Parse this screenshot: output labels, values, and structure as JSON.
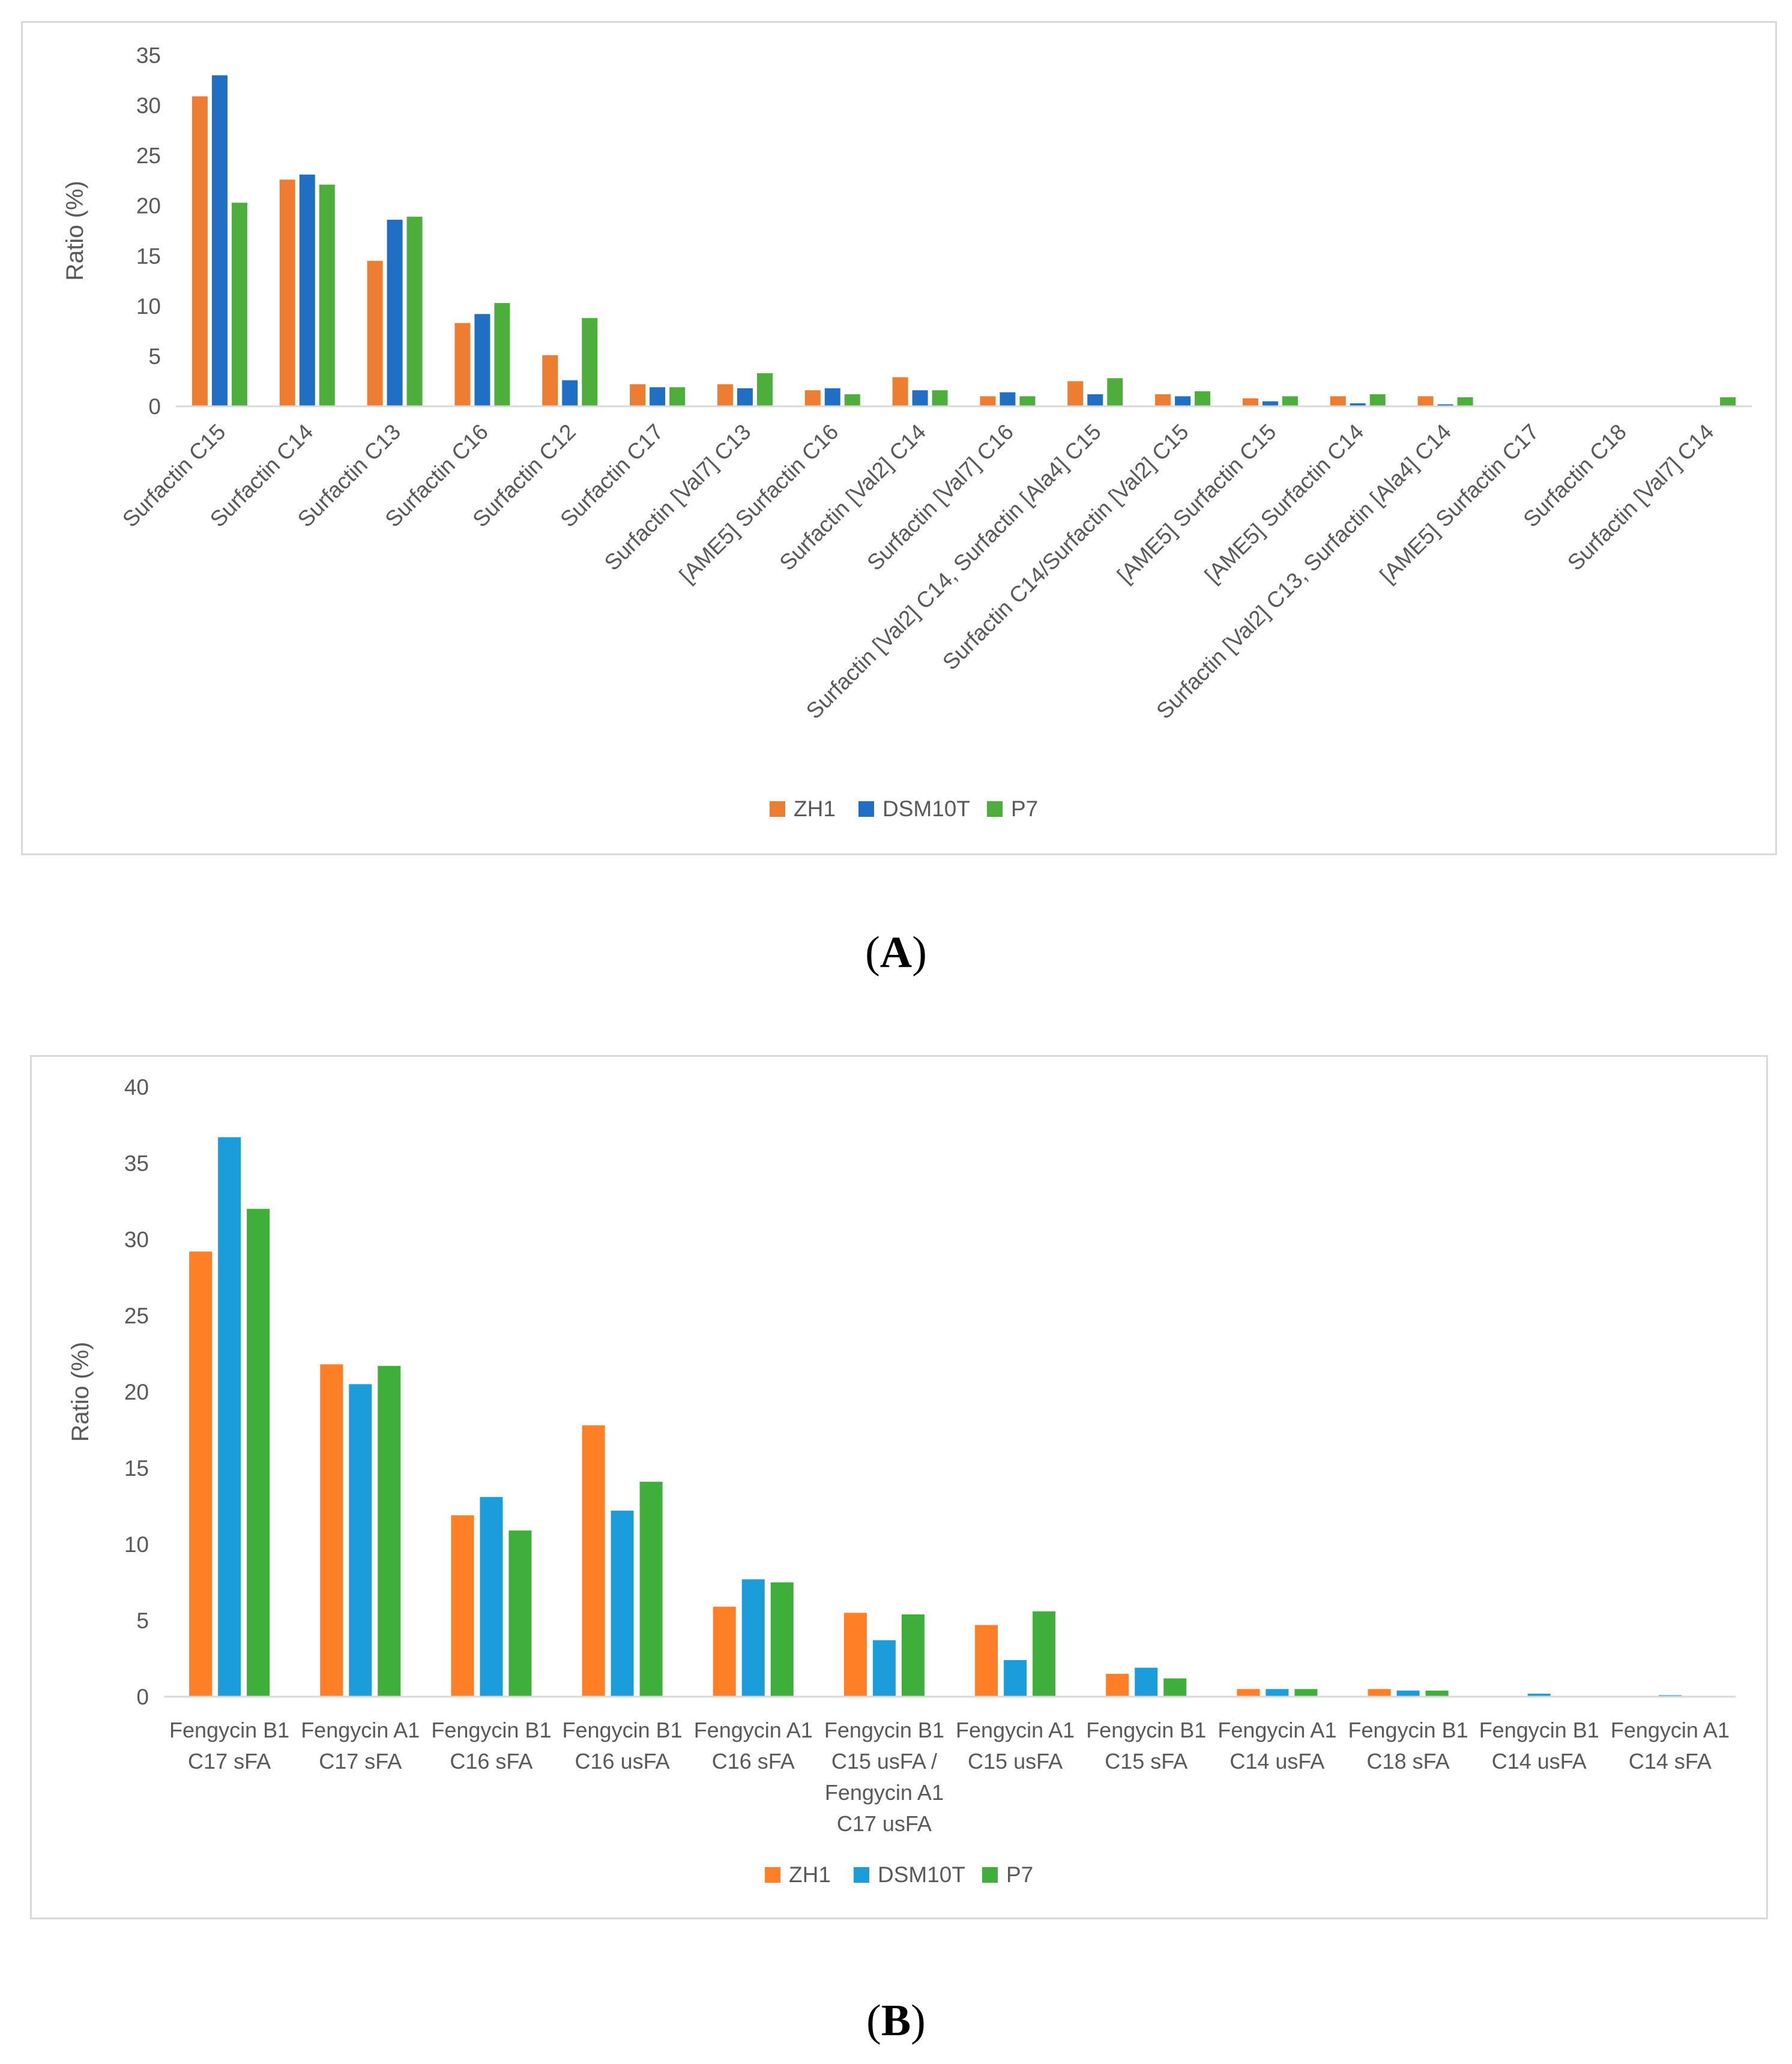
{
  "chart_data": [
    {
      "type": "bar",
      "panel": "A",
      "title": "",
      "xlabel": "",
      "ylabel": "Ratio (%)",
      "ylim": [
        0,
        35
      ],
      "yticks": [
        0,
        5,
        10,
        15,
        20,
        25,
        30,
        35
      ],
      "grid": false,
      "legend_position": "bottom",
      "categories": [
        "Surfactin C15",
        "Surfactin C14",
        "Surfactin C13",
        "Surfactin C16",
        "Surfactin C12",
        "Surfactin C17",
        "Surfactin [Val7] C13",
        "[AME5] Surfactin C16",
        "Surfactin [Val2] C14",
        "Surfactin [Val7] C16",
        "Surfactin [Val2] C14, Surfactin [Ala4] C15",
        "Surfactin C14/Surfactin [Val2] C15",
        "[AME5] Surfactin C15",
        "[AME5] Surfactin C14",
        "Surfactin [Val2] C13, Surfactin [Ala4] C14",
        "[AME5] Surfactin C17",
        "Surfactin C18",
        "Surfactin [Val7] C14"
      ],
      "series": [
        {
          "name": "ZH1",
          "color": "#ED7D31",
          "values": [
            30.9,
            22.6,
            14.5,
            8.3,
            5.1,
            2.2,
            2.2,
            1.6,
            2.9,
            1.0,
            2.5,
            1.2,
            0.8,
            1.0,
            1.0,
            0,
            0,
            0
          ]
        },
        {
          "name": "DSM10T",
          "color": "#1F6FC5",
          "values": [
            33.0,
            23.1,
            18.6,
            9.2,
            2.6,
            1.9,
            1.8,
            1.8,
            1.6,
            1.4,
            1.2,
            1.0,
            0.5,
            0.3,
            0.2,
            0,
            0,
            0
          ]
        },
        {
          "name": "P7",
          "color": "#4EAE3C",
          "values": [
            20.3,
            22.1,
            18.9,
            10.3,
            8.8,
            1.9,
            3.3,
            1.2,
            1.6,
            1.0,
            2.8,
            1.5,
            1.0,
            1.2,
            0.9,
            0,
            0,
            0.9
          ]
        }
      ]
    },
    {
      "type": "bar",
      "panel": "B",
      "title": "",
      "xlabel": "",
      "ylabel": "Ratio (%)",
      "ylim": [
        0,
        40
      ],
      "yticks": [
        0,
        5,
        10,
        15,
        20,
        25,
        30,
        35,
        40
      ],
      "grid": false,
      "legend_position": "bottom",
      "categories": [
        [
          "Fengycin B1",
          "C17 sFA"
        ],
        [
          "Fengycin A1",
          "C17 sFA"
        ],
        [
          "Fengycin B1",
          "C16 sFA"
        ],
        [
          "Fengycin B1",
          "C16 usFA"
        ],
        [
          "Fengycin A1",
          "C16 sFA"
        ],
        [
          "Fengycin B1",
          "C15 usFA /",
          "Fengycin A1",
          "C17 usFA"
        ],
        [
          "Fengycin A1",
          "C15 usFA"
        ],
        [
          "Fengycin B1",
          "C15 sFA"
        ],
        [
          "Fengycin A1",
          "C14 usFA"
        ],
        [
          "Fengycin B1",
          "C18 sFA"
        ],
        [
          "Fengycin B1",
          "C14 usFA"
        ],
        [
          "Fengycin A1",
          "C14 sFA"
        ]
      ],
      "series": [
        {
          "name": "ZH1",
          "color": "#FF7F27",
          "values": [
            29.2,
            21.8,
            11.9,
            17.8,
            5.9,
            5.5,
            4.7,
            1.5,
            0.5,
            0.5,
            0,
            0
          ]
        },
        {
          "name": "DSM10T",
          "color": "#1B9DDB",
          "values": [
            36.7,
            20.5,
            13.1,
            12.2,
            7.7,
            3.7,
            2.4,
            1.9,
            0.5,
            0.4,
            0.2,
            0.1
          ]
        },
        {
          "name": "P7",
          "color": "#3DAF3A",
          "values": [
            32.0,
            21.7,
            10.9,
            14.1,
            7.5,
            5.4,
            5.6,
            1.2,
            0.5,
            0.4,
            0,
            0
          ]
        }
      ]
    }
  ],
  "panel_labels": {
    "a": "A",
    "b": "B"
  }
}
